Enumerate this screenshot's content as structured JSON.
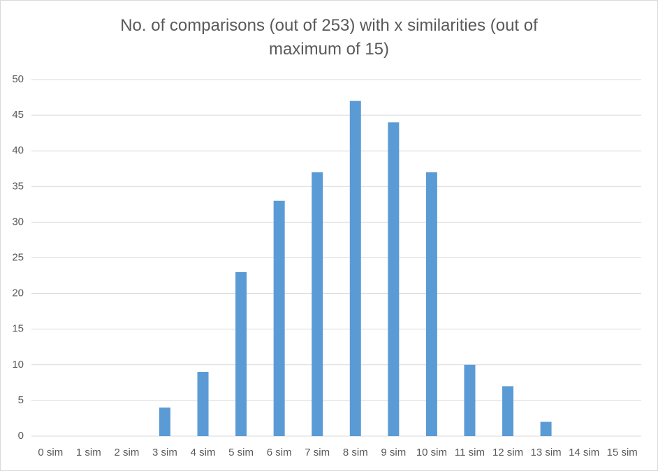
{
  "chart_data": {
    "type": "bar",
    "title": "No. of comparisons (out of 253) with x similarities (out of maximum of 15)",
    "categories": [
      "0 sim",
      "1 sim",
      "2 sim",
      "3 sim",
      "4 sim",
      "5 sim",
      "6 sim",
      "7 sim",
      "8 sim",
      "9 sim",
      "10 sim",
      "11 sim",
      "12 sim",
      "13 sim",
      "14 sim",
      "15 sim"
    ],
    "values": [
      0,
      0,
      0,
      4,
      9,
      23,
      33,
      37,
      47,
      44,
      37,
      10,
      7,
      2,
      0,
      0
    ],
    "color": "#5b9bd5",
    "ylim": [
      0,
      50
    ],
    "yticks": [
      0,
      5,
      10,
      15,
      20,
      25,
      30,
      35,
      40,
      45,
      50
    ],
    "grid": true
  }
}
